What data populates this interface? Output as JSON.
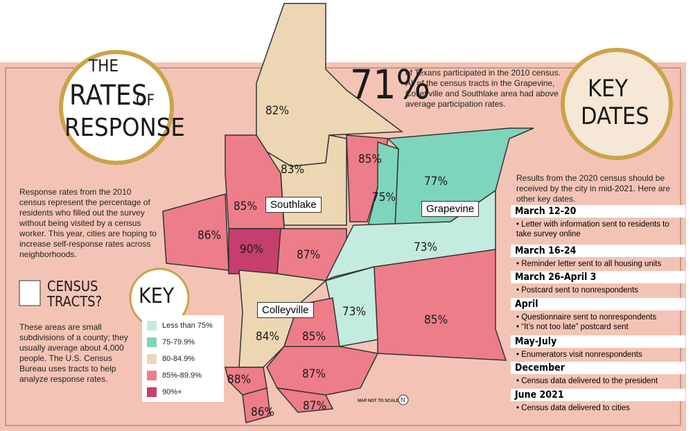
{
  "title": {
    "line1": "THE",
    "line2": "RATES",
    "line3": "OF",
    "line4": "RESPONSE"
  },
  "intro": "Response rates from the 2010 census represent the percentage of residents who filled out the survey without being visited by a census worker. This year, cities are hoping to increase self-response rates across neighborhoods.",
  "census_tracts": {
    "heading_1": "CENSUS",
    "heading_2": "TRACTS?",
    "text": "These areas are small subdivisions of a county; they usually average about 4,000 people. The U.S. Census Bureau uses tracts to help analyze response rates."
  },
  "key": {
    "title": "KEY",
    "items": [
      {
        "label": "Less than 75%",
        "color": "#c3ebdf"
      },
      {
        "label": "75-79.9%",
        "color": "#7dd5bb"
      },
      {
        "label": "80-84.9%",
        "color": "#ecd6b4"
      },
      {
        "label": "85%-89.9%",
        "color": "#ee7d8a"
      },
      {
        "label": "90%+",
        "color": "#c63f6c"
      }
    ]
  },
  "stat": {
    "value": "71%",
    "text": "of Texans participated in the 2010 census. All of the census tracts in the Grapevine, Colleyville and Southlake area had above average participation rates."
  },
  "map": {
    "cities": [
      "Southlake",
      "Grapevine",
      "Colleyville"
    ],
    "tracts": [
      "82%",
      "83%",
      "85%",
      "86%",
      "90%",
      "87%",
      "85%",
      "75%",
      "77%",
      "73%",
      "73%",
      "85%",
      "84%",
      "85%",
      "87%",
      "88%",
      "86%",
      "87%"
    ],
    "scale_note": "MAP NOT TO SCALE",
    "north": "N"
  },
  "key_dates": {
    "title_1": "KEY",
    "title_2": "DATES",
    "intro": "Results from the 2020 census should be received by the city in mid-2021. Here are other key dates.",
    "events": [
      {
        "date": "March 12-20",
        "items": [
          "Letter with information sent to residents to take survey online"
        ]
      },
      {
        "date": "March 16-24",
        "items": [
          "Reminder letter sent to all housing units"
        ]
      },
      {
        "date": "March 26-April 3",
        "items": [
          "Postcard sent to nonrespondents"
        ]
      },
      {
        "date": "April",
        "items": [
          "Questionnaire sent to nonrespondents",
          "“It’s not too late” postcard sent"
        ]
      },
      {
        "date": "May-July",
        "items": [
          "Enumerators visit nonrespondents"
        ]
      },
      {
        "date": "December",
        "items": [
          "Census data delivered to the president"
        ]
      },
      {
        "date": "June 2021",
        "items": [
          "Census data delivered to cities"
        ]
      }
    ]
  }
}
